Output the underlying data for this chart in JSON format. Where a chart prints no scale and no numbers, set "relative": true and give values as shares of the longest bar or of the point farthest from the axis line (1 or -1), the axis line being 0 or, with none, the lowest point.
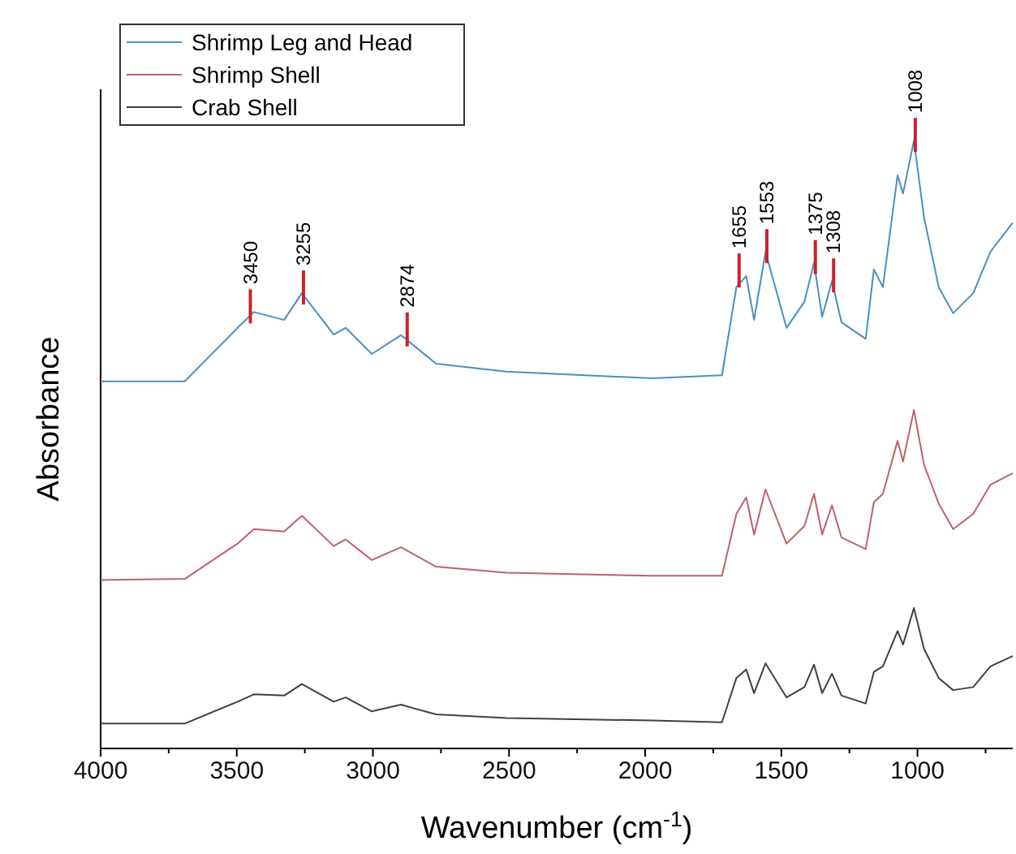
{
  "chart_data": {
    "type": "line",
    "relative": true,
    "xlabel": "Wavenumber (cm$^{-1}$)",
    "ylabel": "Absorbance",
    "x": [
      4000,
      3691,
      3497,
      3437,
      3326,
      3261,
      3144,
      3100,
      3004,
      2897,
      2768,
      2510,
      1974,
      1718,
      1665,
      1629,
      1600,
      1558,
      1481,
      1415,
      1380,
      1350,
      1314,
      1279,
      1190,
      1160,
      1127,
      1073,
      1053,
      1013,
      976,
      922,
      869,
      795,
      732,
      650
    ],
    "xlim": [
      4000,
      650
    ],
    "xticks": [
      4000,
      {
        "value": 3750,
        "label": null
      },
      3500,
      {
        "value": 3250,
        "label": null
      },
      3000,
      {
        "value": 2750,
        "label": null
      },
      2500,
      {
        "value": 2250,
        "label": null
      },
      2000,
      {
        "value": 1750,
        "label": null
      },
      1500,
      {
        "value": 1250,
        "label": null
      },
      1000,
      {
        "value": 750,
        "label": null
      }
    ],
    "series": [
      {
        "name": "Shrimp Leg and Head",
        "color": "#4a8fc0",
        "values": [
          0.604,
          0.604,
          0.692,
          0.718,
          0.705,
          0.749,
          0.681,
          0.692,
          0.649,
          0.68,
          0.633,
          0.62,
          0.609,
          0.614,
          0.759,
          0.777,
          0.705,
          0.817,
          0.692,
          0.735,
          0.799,
          0.71,
          0.769,
          0.701,
          0.674,
          0.788,
          0.759,
          0.943,
          0.913,
          1.0,
          0.874,
          0.759,
          0.716,
          0.749,
          0.817,
          0.865
        ]
      },
      {
        "name": "Shrimp Shell",
        "color": "#c0606a",
        "values": [
          0.277,
          0.279,
          0.337,
          0.361,
          0.357,
          0.383,
          0.333,
          0.344,
          0.31,
          0.331,
          0.299,
          0.289,
          0.284,
          0.284,
          0.386,
          0.413,
          0.352,
          0.426,
          0.337,
          0.366,
          0.419,
          0.352,
          0.4,
          0.347,
          0.328,
          0.405,
          0.419,
          0.506,
          0.472,
          0.557,
          0.467,
          0.403,
          0.361,
          0.386,
          0.434,
          0.453
        ]
      },
      {
        "name": "Crab Shell",
        "color": "#404040",
        "values": [
          0.041,
          0.041,
          0.077,
          0.089,
          0.087,
          0.106,
          0.077,
          0.084,
          0.061,
          0.072,
          0.056,
          0.05,
          0.046,
          0.043,
          0.116,
          0.13,
          0.091,
          0.14,
          0.084,
          0.101,
          0.138,
          0.091,
          0.123,
          0.087,
          0.074,
          0.126,
          0.135,
          0.193,
          0.171,
          0.231,
          0.164,
          0.116,
          0.096,
          0.101,
          0.135,
          0.152
        ]
      }
    ],
    "annotations": [
      {
        "text": "3450",
        "x": 3450,
        "y": 0.718
      },
      {
        "text": "3255",
        "x": 3255,
        "y": 0.749
      },
      {
        "text": "2874",
        "x": 2874,
        "y": 0.68
      },
      {
        "text": "1655",
        "x": 1655,
        "y": 0.777
      },
      {
        "text": "1553",
        "x": 1553,
        "y": 0.817
      },
      {
        "text": "1375",
        "x": 1375,
        "y": 0.799
      },
      {
        "text": "1308",
        "x": 1308,
        "y": 0.769
      },
      {
        "text": "1008",
        "x": 1008,
        "y": 1.0
      }
    ],
    "legend": "top left",
    "grid": false,
    "marker": "none",
    "line_style": "solid"
  }
}
